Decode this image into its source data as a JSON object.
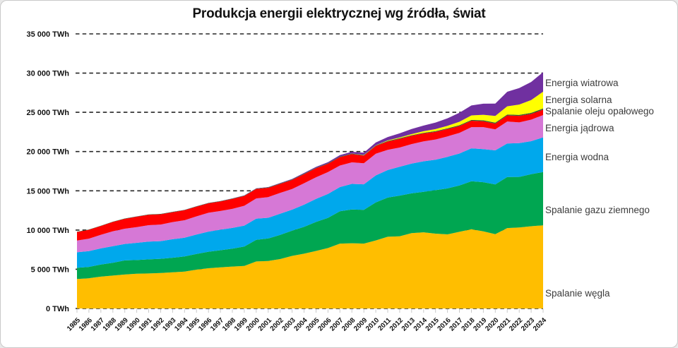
{
  "window": {
    "background": "#ffffff",
    "border_color": "#c9c9c9"
  },
  "chart_data": {
    "type": "area",
    "stacked": true,
    "title": "Produkcja energii elektrycznej wg źródła, świat",
    "unit": "TWh",
    "grid": "dashed horizontal lines",
    "gridline_color": "#262626",
    "legend_position": "right, direct labels next to each band",
    "x_label_rotation_deg": -45,
    "x": [
      1985,
      1986,
      1987,
      1988,
      1989,
      1990,
      1991,
      1992,
      1993,
      1994,
      1995,
      1996,
      1997,
      1998,
      1999,
      2000,
      2001,
      2002,
      2003,
      2004,
      2005,
      2006,
      2007,
      2008,
      2009,
      2010,
      2011,
      2012,
      2013,
      2014,
      2015,
      2016,
      2017,
      2018,
      2019,
      2020,
      2021,
      2022,
      2023,
      2024
    ],
    "y_axis": {
      "min": 0,
      "max": 35000,
      "step": 5000,
      "tick_labels": [
        "0 TWh",
        "5 000 TWh",
        "10 000 TWh",
        "15 000 TWh",
        "20 000 TWh",
        "25 000 TWh",
        "30 000 TWh",
        "35 000 TWh"
      ]
    },
    "series": [
      {
        "key": "coal",
        "label": "Spalanie węgla",
        "color": "#FFBE00",
        "values": [
          3748,
          3852,
          4058,
          4190,
          4331,
          4426,
          4467,
          4524,
          4608,
          4699,
          4946,
          5133,
          5237,
          5346,
          5427,
          5994,
          6058,
          6299,
          6700,
          6985,
          7332,
          7704,
          8268,
          8318,
          8270,
          8672,
          9144,
          9204,
          9613,
          9712,
          9538,
          9451,
          9772,
          10100,
          9824,
          9471,
          10244,
          10317,
          10480,
          10600
        ]
      },
      {
        "key": "gas",
        "label": "Spalanie gazu ziemnego",
        "color": "#00A651",
        "values": [
          1439,
          1448,
          1538,
          1629,
          1796,
          1748,
          1791,
          1814,
          1859,
          1933,
          2011,
          2104,
          2186,
          2280,
          2470,
          2753,
          2866,
          3081,
          3225,
          3417,
          3696,
          3846,
          4128,
          4303,
          4301,
          4855,
          4991,
          5181,
          5066,
          5155,
          5543,
          5850,
          5915,
          6118,
          6271,
          6335,
          6518,
          6456,
          6634,
          6790
        ]
      },
      {
        "key": "hydro",
        "label": "Energia wodna",
        "color": "#00A8EC",
        "values": [
          1979,
          2006,
          2059,
          2128,
          2094,
          2191,
          2266,
          2247,
          2357,
          2386,
          2462,
          2559,
          2614,
          2640,
          2663,
          2697,
          2638,
          2701,
          2672,
          2824,
          2933,
          3041,
          3079,
          3261,
          3252,
          3437,
          3508,
          3672,
          3794,
          3895,
          3884,
          4023,
          4060,
          4193,
          4222,
          4347,
          4274,
          4311,
          4210,
          4420
        ]
      },
      {
        "key": "nuclear",
        "label": "Energia jądrowa",
        "color": "#D678D6",
        "values": [
          1489,
          1596,
          1735,
          1893,
          1945,
          2001,
          2096,
          2111,
          2185,
          2225,
          2321,
          2406,
          2390,
          2431,
          2533,
          2582,
          2637,
          2660,
          2635,
          2738,
          2768,
          2791,
          2748,
          2739,
          2697,
          2768,
          2584,
          2461,
          2479,
          2535,
          2571,
          2612,
          2639,
          2701,
          2796,
          2674,
          2800,
          2632,
          2740,
          2840
        ]
      },
      {
        "key": "oil",
        "label": "Spalanie oleju opałowego",
        "color": "#FE0000",
        "values": [
          1095,
          1130,
          1125,
          1190,
          1265,
          1328,
          1326,
          1318,
          1266,
          1277,
          1245,
          1204,
          1214,
          1277,
          1247,
          1212,
          1184,
          1137,
          1152,
          1161,
          1149,
          1067,
          1076,
          1058,
          966,
          978,
          1059,
          1107,
          1063,
          1023,
          989,
          931,
          875,
          818,
          760,
          737,
          769,
          836,
          730,
          700
        ]
      },
      {
        "key": "unlabeled-dark-thin-band",
        "label": "",
        "color": "#2E5E33",
        "values": [
          35,
          36,
          37,
          38,
          39,
          40,
          41,
          42,
          43,
          44,
          45,
          46,
          47,
          48,
          50,
          52,
          53,
          55,
          57,
          59,
          60,
          62,
          64,
          66,
          68,
          70,
          72,
          74,
          76,
          78,
          85,
          90,
          95,
          100,
          110,
          115,
          120,
          130,
          140,
          150
        ]
      },
      {
        "key": "solar",
        "label": "Energia solarna",
        "color": "#FFFF00",
        "values": [
          0,
          0,
          0,
          0,
          0,
          0,
          0,
          0,
          0,
          0,
          0,
          0,
          0,
          0,
          1,
          1,
          1,
          2,
          2,
          3,
          4,
          5,
          7,
          12,
          20,
          32,
          64,
          100,
          132,
          198,
          256,
          329,
          445,
          574,
          703,
          853,
          1048,
          1315,
          1631,
          2130
        ]
      },
      {
        "key": "wind",
        "label": "Energia wiatrowa",
        "color": "#7030A0",
        "values": [
          1,
          1,
          2,
          2,
          3,
          4,
          4,
          5,
          6,
          7,
          8,
          9,
          12,
          16,
          21,
          31,
          38,
          52,
          63,
          85,
          104,
          133,
          171,
          221,
          276,
          342,
          437,
          526,
          646,
          712,
          831,
          957,
          1136,
          1269,
          1420,
          1586,
          1848,
          2098,
          2310,
          2490
        ]
      }
    ]
  }
}
